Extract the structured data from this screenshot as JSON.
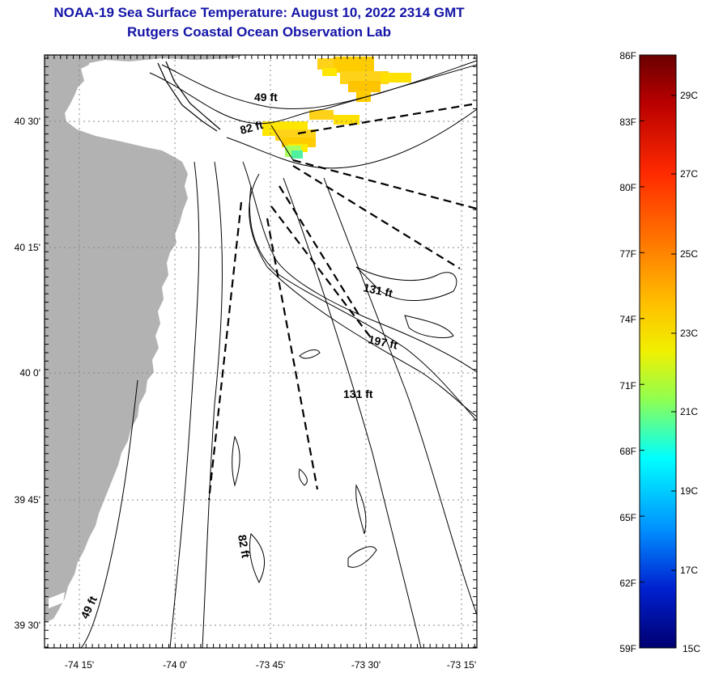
{
  "title_line1": "NOAA-19 Sea Surface Temperature:  August 10, 2022 2314 GMT",
  "title_line2": "Rutgers Coastal Ocean Observation Lab",
  "map": {
    "lon_ticks": [
      "-74 15'",
      "-74 0'",
      "-73 45'",
      "-73 30'",
      "-73 15'"
    ],
    "lat_ticks": [
      "40 30'",
      "40 15'",
      "40 0'",
      "39 45'",
      "39 30'"
    ],
    "contour_labels": [
      "49 ft",
      "82 ft",
      "131 ft",
      "197 ft",
      "131 ft",
      "82 ft",
      "49 ft"
    ],
    "land_color": "#b2b2b2",
    "water_color": "#ffffff"
  },
  "colorbar": {
    "fahrenheit_labels": [
      "86F",
      "83F",
      "80F",
      "77F",
      "74F",
      "71F",
      "68F",
      "65F",
      "62F",
      "59F"
    ],
    "celsius_labels": [
      "29C",
      "27C",
      "25C",
      "23C",
      "21C",
      "19C",
      "17C",
      "15C"
    ],
    "range_f": [
      59,
      86
    ],
    "colors_top_to_bottom": [
      "#7a0000",
      "#c00000",
      "#ff2000",
      "#ff7a00",
      "#ffc800",
      "#f0f000",
      "#80ff60",
      "#00ffff",
      "#0090ff",
      "#0020d0",
      "#000080"
    ]
  }
}
